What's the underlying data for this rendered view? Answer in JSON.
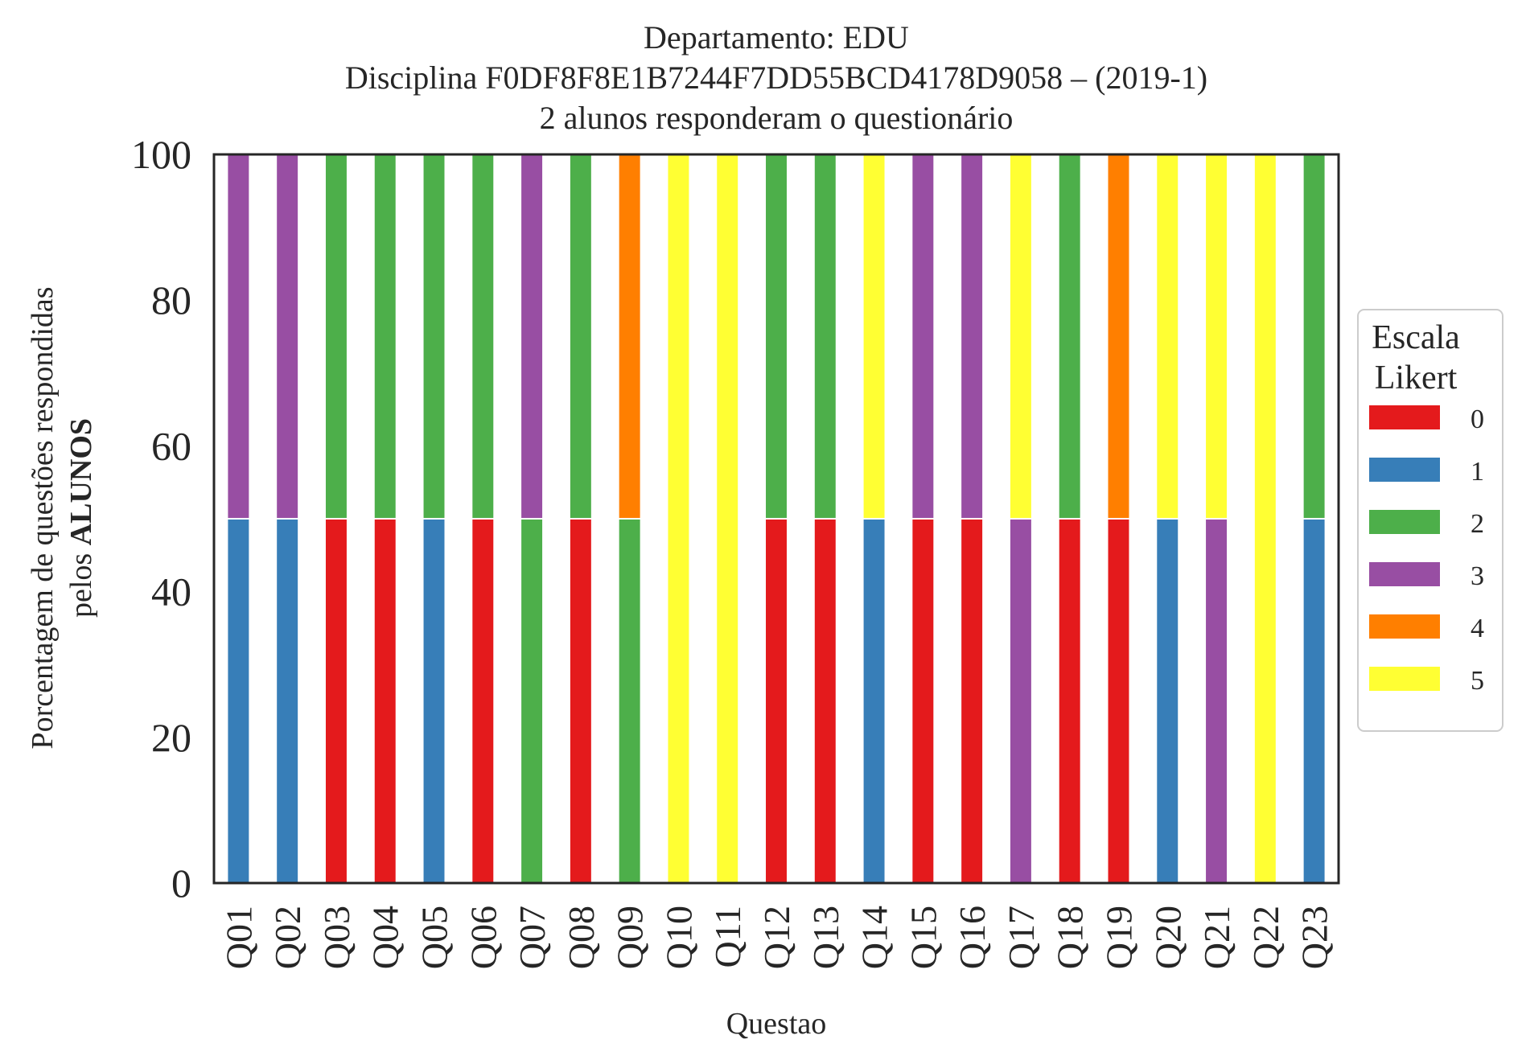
{
  "chart_data": {
    "type": "bar",
    "stacked": true,
    "title_lines": [
      "Departamento: EDU",
      "Disciplina F0DF8F8E1B7244F7DD55BCD4178D9058 – (2019-1)",
      "2 alunos responderam o questionário"
    ],
    "xlabel": "Questao",
    "ylabel_line1": "Porcentagem de questões respondidas",
    "ylabel_line2_prefix": "pelos ",
    "ylabel_line2_bold": "ALUNOS",
    "ylim": [
      0,
      100
    ],
    "yticks": [
      "0",
      "20",
      "40",
      "60",
      "80",
      "100"
    ],
    "grid": false,
    "legend": {
      "title_line1": "Escala",
      "title_line2": "Likert",
      "placement": "center-right outside"
    },
    "categories": [
      "Q01",
      "Q02",
      "Q03",
      "Q04",
      "Q05",
      "Q06",
      "Q07",
      "Q08",
      "Q09",
      "Q10",
      "Q11",
      "Q12",
      "Q13",
      "Q14",
      "Q15",
      "Q16",
      "Q17",
      "Q18",
      "Q19",
      "Q20",
      "Q21",
      "Q22",
      "Q23"
    ],
    "series": [
      {
        "name": "0",
        "color": "#e41a1c",
        "values": [
          0,
          0,
          50,
          50,
          0,
          50,
          0,
          50,
          0,
          0,
          0,
          50,
          50,
          0,
          50,
          50,
          0,
          50,
          50,
          0,
          0,
          0,
          0
        ]
      },
      {
        "name": "1",
        "color": "#377eb8",
        "values": [
          50,
          50,
          0,
          0,
          50,
          0,
          0,
          0,
          0,
          0,
          0,
          0,
          0,
          50,
          0,
          0,
          0,
          0,
          0,
          50,
          0,
          0,
          50
        ]
      },
      {
        "name": "2",
        "color": "#4daf4a",
        "values": [
          0,
          0,
          50,
          50,
          50,
          50,
          50,
          50,
          50,
          0,
          0,
          50,
          50,
          0,
          0,
          0,
          0,
          50,
          0,
          0,
          0,
          0,
          50
        ]
      },
      {
        "name": "3",
        "color": "#984ea3",
        "values": [
          50,
          50,
          0,
          0,
          0,
          0,
          50,
          0,
          0,
          0,
          0,
          0,
          0,
          0,
          50,
          50,
          50,
          0,
          0,
          0,
          50,
          0,
          0
        ]
      },
      {
        "name": "4",
        "color": "#ff7f00",
        "values": [
          0,
          0,
          0,
          0,
          0,
          0,
          0,
          0,
          50,
          0,
          0,
          0,
          0,
          0,
          0,
          0,
          0,
          0,
          50,
          0,
          0,
          0,
          0
        ]
      },
      {
        "name": "5",
        "color": "#ffff33",
        "values": [
          0,
          0,
          0,
          0,
          0,
          0,
          0,
          0,
          0,
          100,
          100,
          0,
          0,
          50,
          0,
          0,
          50,
          0,
          0,
          50,
          50,
          100,
          0
        ]
      }
    ]
  }
}
